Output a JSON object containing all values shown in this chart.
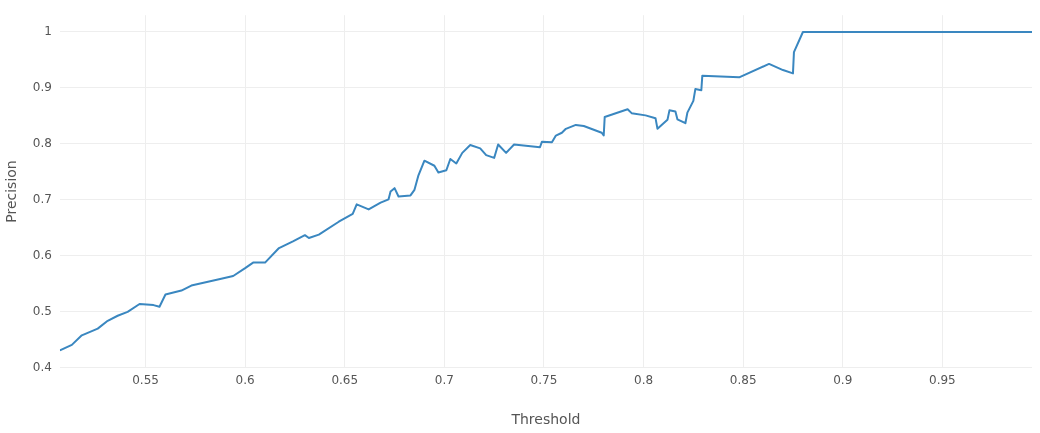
{
  "chart_data": {
    "type": "line",
    "xlabel": "Threshold",
    "ylabel": "Precision",
    "xlim": [
      0.507,
      0.995
    ],
    "xticks": [
      0.55,
      0.6,
      0.65,
      0.7,
      0.75,
      0.8,
      0.85,
      0.9,
      0.95
    ],
    "ylim": [
      0.4,
      1.03
    ],
    "yticks": [
      0.4,
      0.5,
      0.6,
      0.7,
      0.8,
      0.9,
      1
    ],
    "grid": true,
    "legend": false,
    "marker": "none",
    "line_style": "solid",
    "series": [
      {
        "color": "#3a87c0",
        "x": [
          0.507,
          0.513,
          0.518,
          0.526,
          0.531,
          0.536,
          0.541,
          0.547,
          0.554,
          0.557,
          0.56,
          0.568,
          0.573,
          0.588,
          0.594,
          0.6,
          0.604,
          0.61,
          0.617,
          0.624,
          0.63,
          0.632,
          0.637,
          0.647,
          0.654,
          0.656,
          0.662,
          0.668,
          0.672,
          0.673,
          0.675,
          0.677,
          0.683,
          0.685,
          0.687,
          0.69,
          0.695,
          0.697,
          0.701,
          0.703,
          0.706,
          0.709,
          0.713,
          0.718,
          0.721,
          0.725,
          0.727,
          0.731,
          0.735,
          0.748,
          0.749,
          0.754,
          0.756,
          0.759,
          0.761,
          0.766,
          0.77,
          0.779,
          0.78,
          0.7805,
          0.792,
          0.794,
          0.801,
          0.806,
          0.807,
          0.812,
          0.813,
          0.816,
          0.817,
          0.821,
          0.822,
          0.825,
          0.826,
          0.829,
          0.8295,
          0.848,
          0.863,
          0.87,
          0.875,
          0.8755,
          0.88,
          0.995
        ],
        "values": [
          0.431,
          0.441,
          0.458,
          0.47,
          0.484,
          0.493,
          0.5,
          0.514,
          0.512,
          0.509,
          0.531,
          0.538,
          0.547,
          0.559,
          0.564,
          0.578,
          0.588,
          0.588,
          0.614,
          0.626,
          0.637,
          0.632,
          0.638,
          0.661,
          0.675,
          0.692,
          0.683,
          0.695,
          0.701,
          0.715,
          0.721,
          0.706,
          0.708,
          0.718,
          0.744,
          0.77,
          0.761,
          0.749,
          0.753,
          0.773,
          0.765,
          0.784,
          0.798,
          0.792,
          0.78,
          0.775,
          0.799,
          0.784,
          0.799,
          0.794,
          0.804,
          0.803,
          0.815,
          0.82,
          0.827,
          0.834,
          0.832,
          0.82,
          0.815,
          0.848,
          0.862,
          0.855,
          0.851,
          0.846,
          0.827,
          0.843,
          0.86,
          0.858,
          0.844,
          0.837,
          0.856,
          0.877,
          0.898,
          0.896,
          0.922,
          0.919,
          0.943,
          0.932,
          0.926,
          0.964,
          1.0,
          1.0
        ]
      }
    ]
  }
}
